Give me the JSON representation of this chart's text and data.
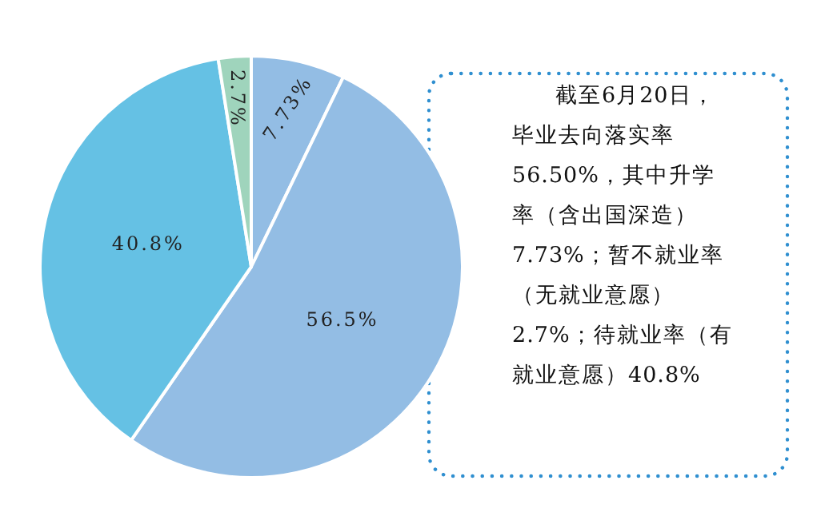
{
  "chart_data": {
    "type": "pie",
    "categories": [
      null,
      null,
      null,
      null
    ],
    "values": [
      7.73,
      56.5,
      40.8,
      2.7
    ],
    "value_labels": [
      "7.73%",
      "56.5%",
      "40.8%",
      "2.7%"
    ],
    "colors": [
      "#93bde4",
      "#93bde4",
      "#65c1e4",
      "#9fd4bc"
    ],
    "annotations": [
      "截至6月20日，毕业去向落实率56.50%，其中升学率（含出国深造）7.73%；暂不就业率（无就业意愿）2.7%；待就业率（有就业意愿）40.8%"
    ]
  }
}
